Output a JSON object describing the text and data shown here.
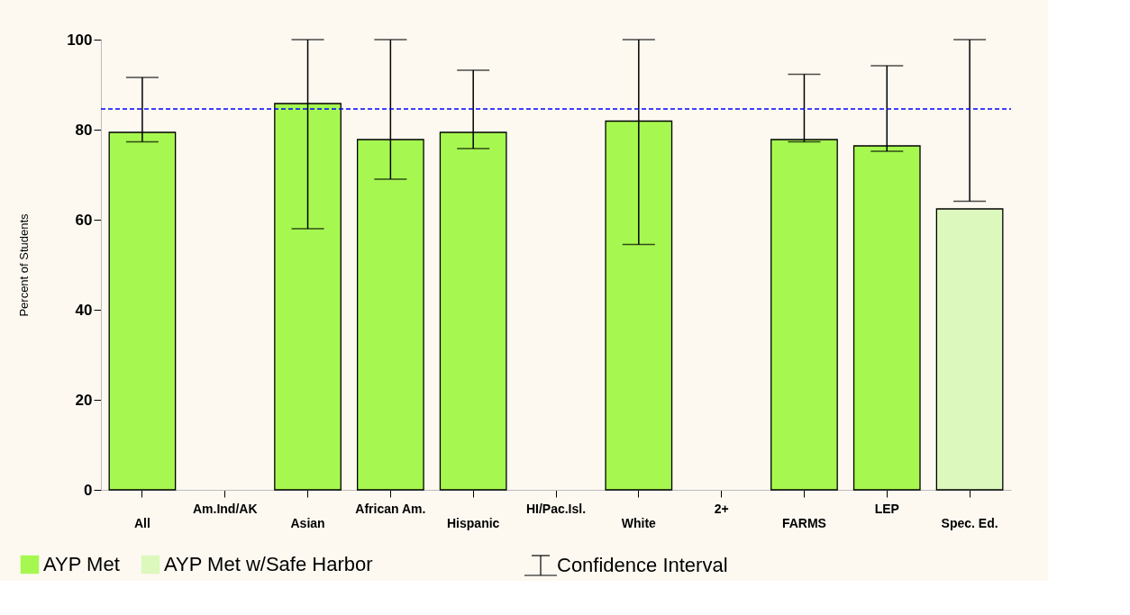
{
  "chart_data": {
    "type": "bar",
    "ylabel": "Percent of Students",
    "categories": [
      "All",
      "Am.Ind/AK",
      "Asian",
      "African Am.",
      "Hispanic",
      "HI/Pac.Isl.",
      "White",
      "2+",
      "FARMS",
      "LEP",
      "Spec. Ed."
    ],
    "series": [
      {
        "name": "AYP Met",
        "color": "#a6f850",
        "values": [
          79.4,
          null,
          85.8,
          77.8,
          79.4,
          null,
          81.9,
          null,
          77.8,
          76.4,
          null
        ],
        "errors": [
          [
            77.3,
            91.6
          ],
          null,
          [
            58.0,
            100
          ],
          [
            69.0,
            100
          ],
          [
            75.8,
            93.2
          ],
          null,
          [
            54.5,
            100
          ],
          null,
          [
            77.3,
            92.3
          ],
          [
            75.2,
            94.2
          ],
          null
        ]
      },
      {
        "name": "AYP Met w/Safe Harbor",
        "color": "#dcf8bc",
        "values": [
          null,
          null,
          null,
          null,
          null,
          null,
          null,
          null,
          null,
          null,
          62.4
        ],
        "errors": [
          null,
          null,
          null,
          null,
          null,
          null,
          null,
          null,
          null,
          null,
          [
            64.1,
            100
          ]
        ]
      }
    ],
    "ylim": [
      0,
      100
    ],
    "yticks": [
      0,
      20,
      40,
      60,
      80,
      100
    ],
    "ref_lines": [
      {
        "axis": "y",
        "value": 84.6,
        "color": "#0000ff",
        "line_style": "dashed"
      }
    ],
    "annotations": [
      "Confidence Interval"
    ],
    "legend": "bottom",
    "grid": false
  }
}
